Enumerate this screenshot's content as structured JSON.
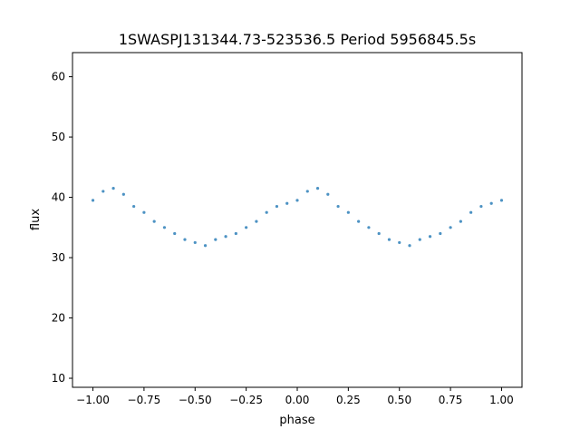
{
  "chart_data": {
    "type": "scatter",
    "title": "1SWASPJ131344.73-523536.5 Period 5956845.5s",
    "xlabel": "phase",
    "ylabel": "flux",
    "xlim": [
      -1.1,
      1.1
    ],
    "ylim": [
      8.5,
      64
    ],
    "xticks": [
      -1.0,
      -0.75,
      -0.5,
      -0.25,
      0.0,
      0.25,
      0.5,
      0.75,
      1.0
    ],
    "xtick_labels": [
      "−1.00",
      "−0.75",
      "−0.50",
      "−0.25",
      "0.00",
      "0.25",
      "0.50",
      "0.75",
      "1.00"
    ],
    "yticks": [
      10,
      20,
      30,
      40,
      50,
      60
    ],
    "ytick_labels": [
      "10",
      "20",
      "30",
      "40",
      "50",
      "60"
    ],
    "grid": false,
    "legend": "none",
    "marker_color": "#1f77b4",
    "series": [
      {
        "x": [
          -1.0,
          -0.95,
          -0.9,
          -0.85,
          -0.8,
          -0.75,
          -0.7,
          -0.65,
          -0.6,
          -0.55,
          -0.5,
          -0.45,
          -0.4,
          -0.35,
          -0.3,
          -0.25,
          -0.2,
          -0.15,
          -0.1,
          -0.05,
          0.0,
          0.05,
          0.1,
          0.15,
          0.2,
          0.25,
          0.3,
          0.35,
          0.4,
          0.45,
          0.5,
          0.55,
          0.6,
          0.65,
          0.7,
          0.75,
          0.8,
          0.85,
          0.9,
          0.95,
          1.0
        ],
        "y": [
          39.5,
          41.0,
          41.5,
          40.5,
          38.5,
          37.5,
          36.0,
          35.0,
          34.0,
          33.0,
          32.5,
          32.0,
          33.0,
          33.5,
          34.0,
          35.0,
          36.0,
          37.5,
          38.5,
          39.0,
          39.5,
          41.0,
          41.5,
          40.5,
          38.5,
          37.5,
          36.0,
          35.0,
          34.0,
          33.0,
          32.5,
          32.0,
          33.0,
          33.5,
          34.0,
          35.0,
          36.0,
          37.5,
          38.5,
          39.0,
          39.5
        ]
      }
    ]
  }
}
